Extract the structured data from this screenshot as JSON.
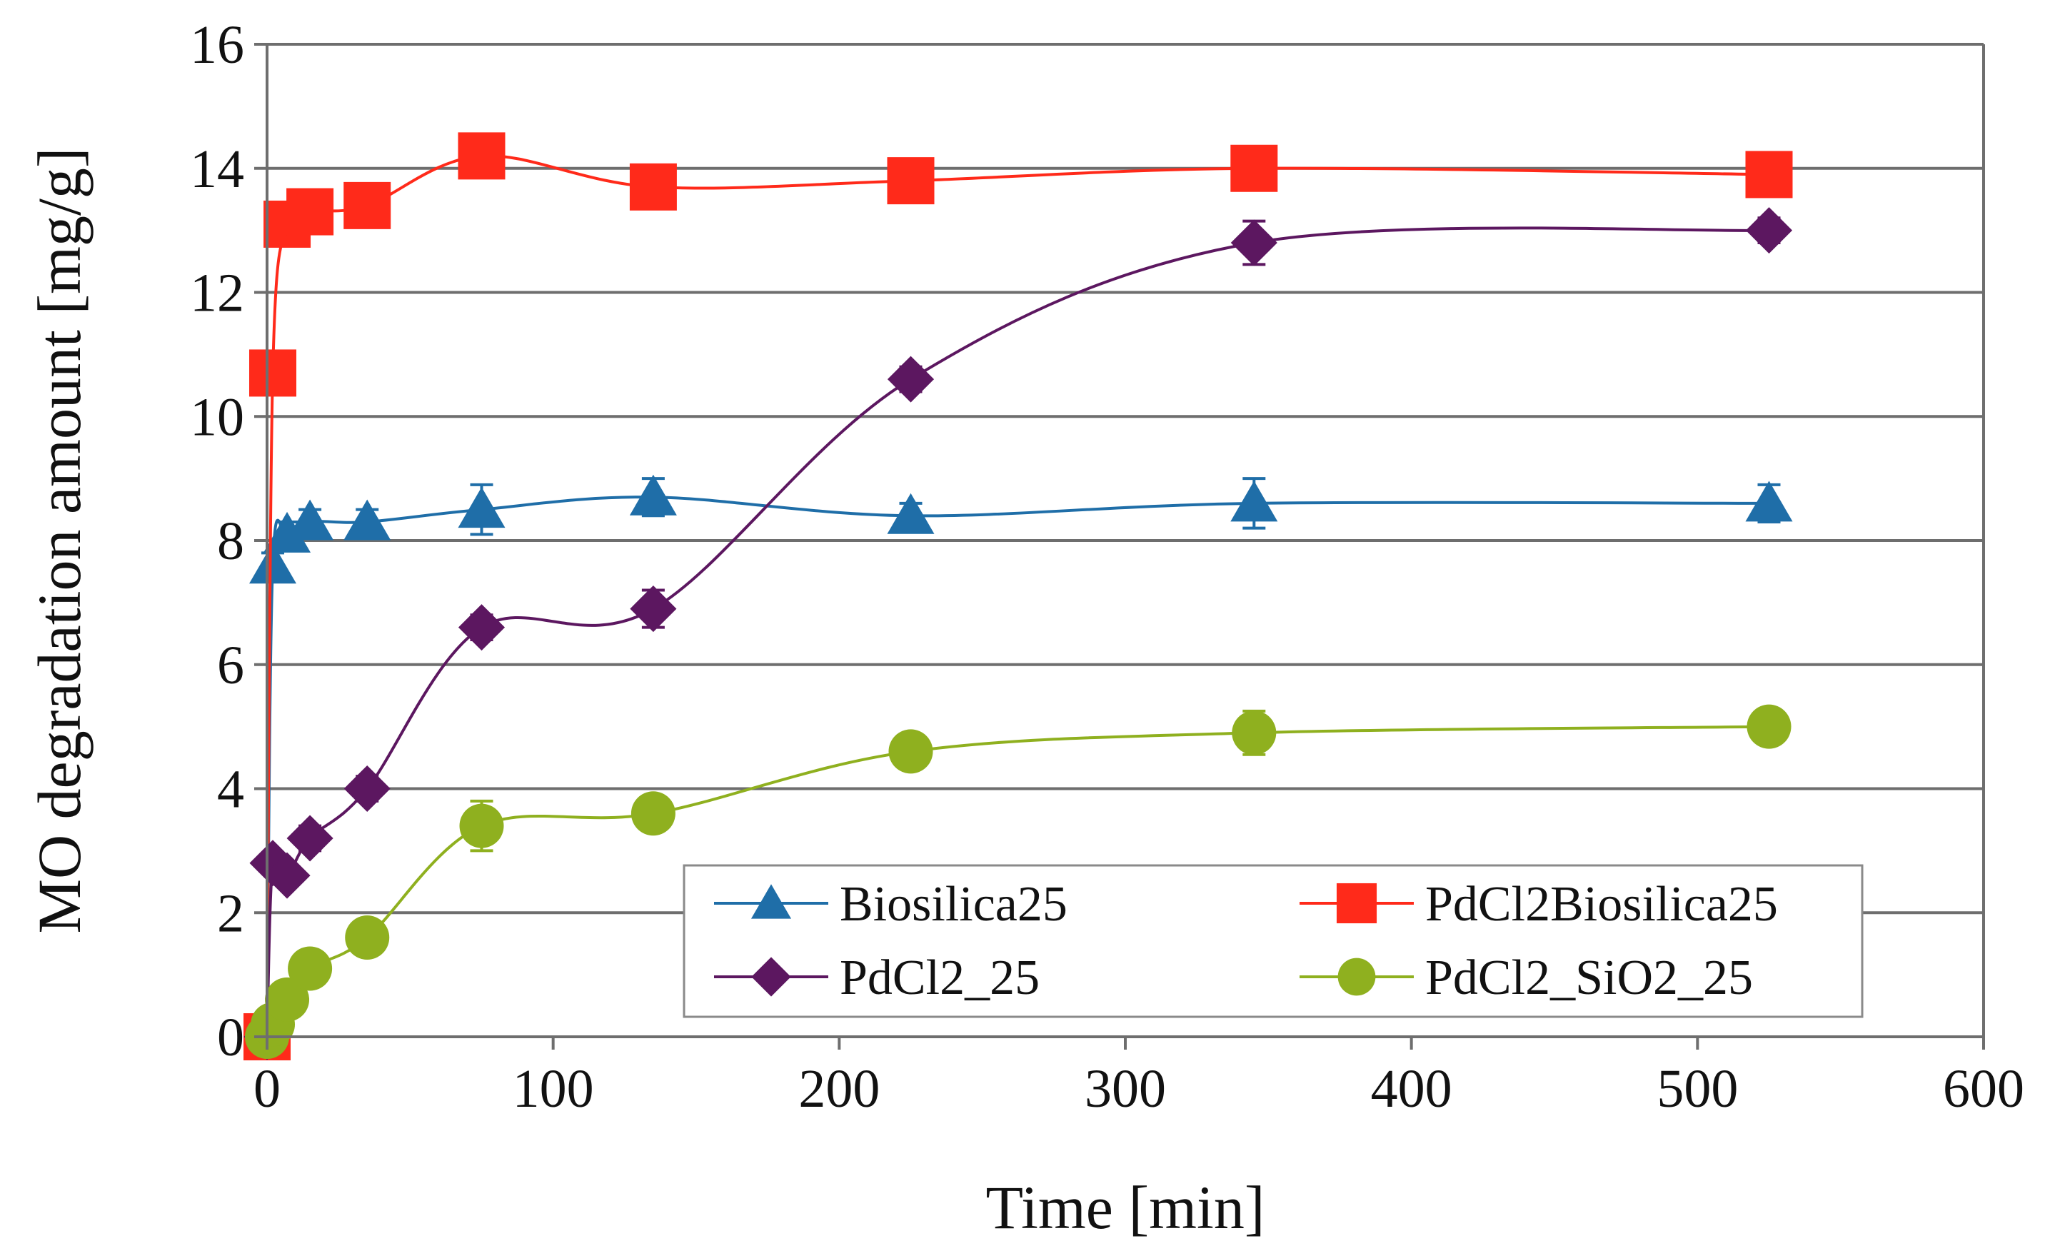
{
  "chart_data": {
    "type": "line",
    "xlabel": "Time [min]",
    "ylabel": "MO degradation amount [mg/g]",
    "xlim": [
      0,
      600
    ],
    "ylim": [
      0,
      16
    ],
    "xticks": [
      0,
      100,
      200,
      300,
      400,
      500,
      600
    ],
    "yticks": [
      0,
      2,
      4,
      6,
      8,
      10,
      12,
      14,
      16
    ],
    "xtick_labels": [
      "0",
      "100",
      "200",
      "300",
      "400",
      "500",
      "600"
    ],
    "ytick_labels": [
      "0",
      "2",
      "4",
      "6",
      "8",
      "10",
      "12",
      "14",
      "16"
    ],
    "grid": "horizontal",
    "legend_position": "bottom-right (inside plot)",
    "series": [
      {
        "name": "Biosilica25",
        "marker": "triangle",
        "color": "#1F6EA8",
        "x": [
          0,
          2,
          7,
          15,
          35,
          75,
          135,
          225,
          345,
          525
        ],
        "y": [
          0,
          7.6,
          8.1,
          8.3,
          8.3,
          8.5,
          8.7,
          8.4,
          8.6,
          8.6
        ],
        "err": [
          0,
          0.2,
          0.2,
          0.2,
          0.2,
          0.4,
          0.3,
          0.2,
          0.4,
          0.3
        ]
      },
      {
        "name": "PdCl2Biosilica25",
        "marker": "square",
        "color": "#FF2A1A",
        "x": [
          0,
          2,
          7,
          15,
          35,
          75,
          135,
          225,
          345,
          525
        ],
        "y": [
          0,
          10.7,
          13.1,
          13.3,
          13.4,
          14.2,
          13.7,
          13.8,
          14.0,
          13.9
        ],
        "err": [
          0,
          0.1,
          0.1,
          0.1,
          0.1,
          0.1,
          0.1,
          0.1,
          0.1,
          0.1
        ]
      },
      {
        "name": "PdCl2_25",
        "marker": "diamond",
        "color": "#5C1760",
        "x": [
          0,
          2,
          7,
          15,
          35,
          75,
          135,
          225,
          345,
          525
        ],
        "y": [
          0,
          2.8,
          2.6,
          3.2,
          4.0,
          6.6,
          6.9,
          10.6,
          12.8,
          13.0
        ],
        "err": [
          0,
          0.1,
          0.1,
          0.2,
          0.2,
          0.2,
          0.3,
          0.2,
          0.35,
          0.2
        ]
      },
      {
        "name": "PdCl2_SiO2_25",
        "marker": "circle",
        "color": "#8FB01F",
        "x": [
          0,
          2,
          7,
          15,
          35,
          75,
          135,
          225,
          345,
          525
        ],
        "y": [
          0,
          0.2,
          0.6,
          1.1,
          1.6,
          3.4,
          3.6,
          4.6,
          4.9,
          5.0
        ],
        "err": [
          0,
          0.1,
          0.1,
          0.15,
          0.15,
          0.4,
          0.2,
          0.15,
          0.35,
          0.2
        ]
      }
    ]
  }
}
